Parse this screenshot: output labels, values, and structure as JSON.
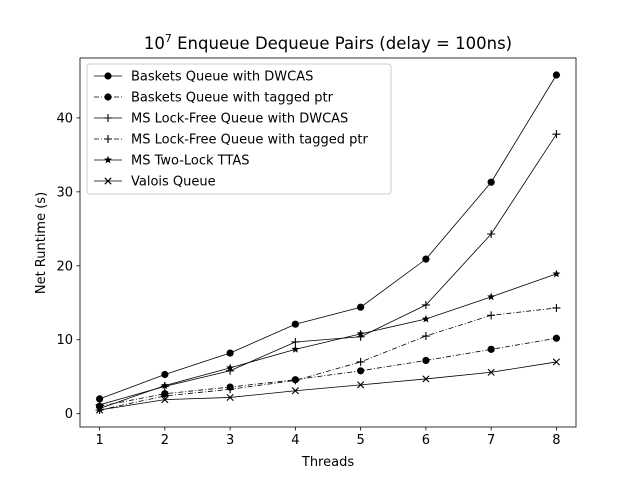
{
  "chart_data": {
    "type": "line",
    "title_base": "10",
    "title_exp": "7",
    "title_rest": " Enqueue Dequeue Pairs (delay = 100ns)",
    "xlabel": "Threads",
    "ylabel": "Net Runtime (s)",
    "x": [
      1,
      2,
      3,
      4,
      5,
      6,
      7,
      8
    ],
    "xlim": [
      0.7,
      8.3
    ],
    "ylim": [
      -1.8,
      48.1
    ],
    "xticks": [
      1,
      2,
      3,
      4,
      5,
      6,
      7,
      8
    ],
    "yticks": [
      0,
      10,
      20,
      30,
      40
    ],
    "grid": false,
    "legend_position": "top-left",
    "series": [
      {
        "name": "Baskets Queue with DWCAS",
        "marker": "circle",
        "dash": "solid",
        "values": [
          2.0,
          5.3,
          8.2,
          12.1,
          14.4,
          20.9,
          31.3,
          45.8
        ]
      },
      {
        "name": "Baskets Queue with tagged ptr",
        "marker": "circle",
        "dash": "dashdot",
        "values": [
          1.0,
          2.7,
          3.6,
          4.6,
          5.8,
          7.2,
          8.7,
          10.2
        ]
      },
      {
        "name": "MS Lock-Free Queue with DWCAS",
        "marker": "plus",
        "dash": "solid",
        "values": [
          1.2,
          3.7,
          5.8,
          9.7,
          10.4,
          14.7,
          24.3,
          37.8
        ]
      },
      {
        "name": "MS Lock-Free Queue with tagged ptr",
        "marker": "plus",
        "dash": "dashdot",
        "values": [
          0.5,
          2.4,
          3.3,
          4.5,
          7.0,
          10.5,
          13.3,
          14.3
        ]
      },
      {
        "name": "MS Two-Lock TTAS",
        "marker": "star",
        "dash": "solid",
        "values": [
          0.7,
          3.8,
          6.2,
          8.7,
          10.8,
          12.8,
          15.8,
          18.9
        ]
      },
      {
        "name": "Valois Queue",
        "marker": "x",
        "dash": "solid",
        "values": [
          0.5,
          1.9,
          2.2,
          3.1,
          3.9,
          4.7,
          5.6,
          7.0
        ]
      }
    ]
  }
}
